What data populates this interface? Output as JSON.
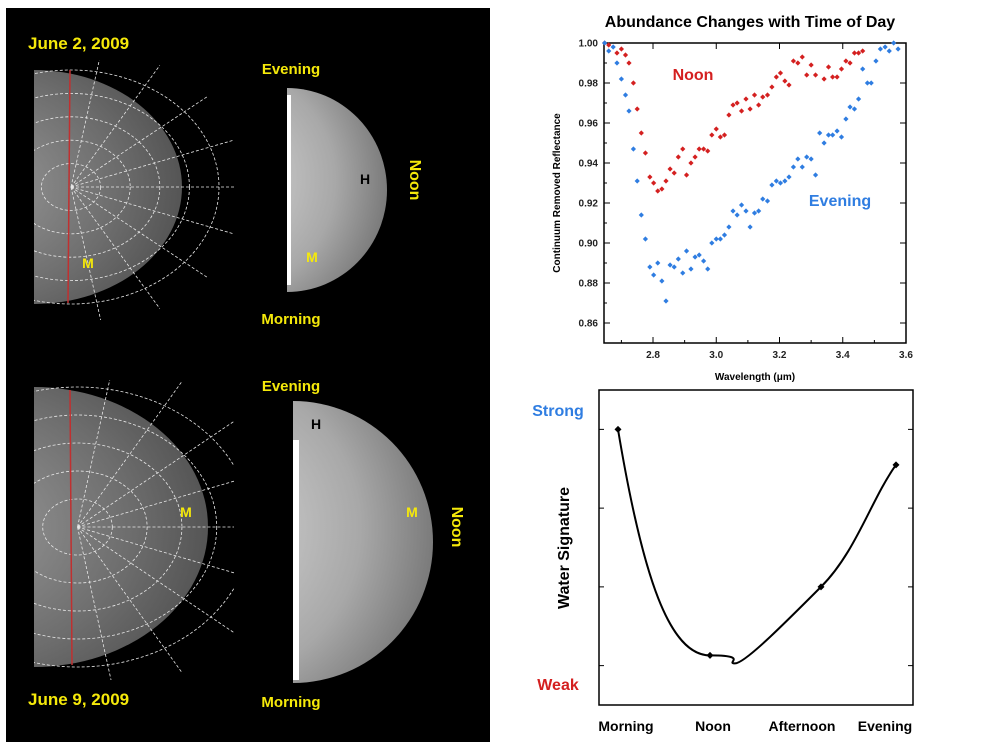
{
  "left_panel": {
    "top": {
      "date": "June 2, 2009",
      "evening_label": "Evening",
      "morning_label": "Morning",
      "noon_label": "Noon",
      "marker_h": "H",
      "marker_m_left": "M",
      "marker_m_right": "M"
    },
    "bottom": {
      "date": "June 9, 2009",
      "evening_label": "Evening",
      "morning_label": "Morning",
      "noon_label": "Noon",
      "marker_h": "H",
      "marker_m_left": "M",
      "marker_m_right": "M"
    },
    "colors": {
      "background": "#000000",
      "label": "#f5e90a"
    }
  },
  "chart_data": [
    {
      "type": "scatter",
      "title": "Abundance Changes with Time of Day",
      "xlabel": "Wavelength (μm)",
      "ylabel": "Continuum Removed Reflectance",
      "xlim": [
        2.645,
        3.6
      ],
      "ylim": [
        0.85,
        1.0
      ],
      "xticks": [
        "2.8",
        "3.0",
        "3.2",
        "3.4",
        "3.6"
      ],
      "yticks": [
        "0.86",
        "0.88",
        "0.90",
        "0.92",
        "0.94",
        "0.96",
        "0.98",
        "1.00"
      ],
      "grid": false,
      "series": [
        {
          "name": "Noon",
          "color": "#d42020",
          "x": [
            2.647,
            2.66,
            2.686,
            2.7,
            2.713,
            2.724,
            2.738,
            2.75,
            2.763,
            2.776,
            2.79,
            2.802,
            2.815,
            2.828,
            2.841,
            2.854,
            2.867,
            2.88,
            2.894,
            2.906,
            2.92,
            2.933,
            2.946,
            2.96,
            2.973,
            2.986,
            3.0,
            3.013,
            3.026,
            3.04,
            3.053,
            3.066,
            3.08,
            3.094,
            3.107,
            3.121,
            3.134,
            3.147,
            3.162,
            3.176,
            3.19,
            3.203,
            3.217,
            3.23,
            3.244,
            3.258,
            3.272,
            3.286,
            3.3,
            3.314,
            3.341,
            3.355,
            3.368,
            3.382,
            3.396,
            3.41,
            3.423,
            3.437,
            3.45,
            3.463
          ],
          "y": [
            1.0,
            0.999,
            0.995,
            0.997,
            0.994,
            0.99,
            0.98,
            0.967,
            0.955,
            0.945,
            0.933,
            0.93,
            0.926,
            0.927,
            0.931,
            0.937,
            0.935,
            0.943,
            0.947,
            0.934,
            0.94,
            0.943,
            0.947,
            0.947,
            0.946,
            0.954,
            0.957,
            0.953,
            0.954,
            0.964,
            0.969,
            0.97,
            0.966,
            0.972,
            0.967,
            0.974,
            0.969,
            0.973,
            0.974,
            0.978,
            0.983,
            0.985,
            0.981,
            0.979,
            0.991,
            0.99,
            0.993,
            0.984,
            0.989,
            0.984,
            0.982,
            0.988,
            0.983,
            0.983,
            0.987,
            0.991,
            0.99,
            0.995,
            0.995,
            0.996
          ]
        },
        {
          "name": "Evening",
          "color": "#2f7de1",
          "x": [
            2.647,
            2.66,
            2.674,
            2.686,
            2.7,
            2.713,
            2.724,
            2.738,
            2.75,
            2.763,
            2.776,
            2.79,
            2.802,
            2.815,
            2.828,
            2.841,
            2.854,
            2.867,
            2.88,
            2.894,
            2.906,
            2.92,
            2.933,
            2.946,
            2.96,
            2.973,
            2.986,
            3.0,
            3.013,
            3.026,
            3.04,
            3.053,
            3.066,
            3.08,
            3.094,
            3.107,
            3.121,
            3.134,
            3.147,
            3.162,
            3.176,
            3.19,
            3.203,
            3.217,
            3.23,
            3.244,
            3.258,
            3.272,
            3.286,
            3.3,
            3.314,
            3.327,
            3.341,
            3.355,
            3.368,
            3.382,
            3.396,
            3.41,
            3.423,
            3.437,
            3.45,
            3.463,
            3.478,
            3.49,
            3.505,
            3.519,
            3.534,
            3.547,
            3.561,
            3.575
          ],
          "y": [
            1.0,
            0.996,
            0.998,
            0.99,
            0.982,
            0.974,
            0.966,
            0.947,
            0.931,
            0.914,
            0.902,
            0.888,
            0.884,
            0.89,
            0.881,
            0.871,
            0.889,
            0.888,
            0.892,
            0.885,
            0.896,
            0.887,
            0.893,
            0.894,
            0.891,
            0.887,
            0.9,
            0.902,
            0.902,
            0.904,
            0.908,
            0.916,
            0.914,
            0.919,
            0.916,
            0.908,
            0.915,
            0.916,
            0.922,
            0.921,
            0.929,
            0.931,
            0.93,
            0.931,
            0.933,
            0.938,
            0.942,
            0.938,
            0.943,
            0.942,
            0.934,
            0.955,
            0.95,
            0.954,
            0.954,
            0.956,
            0.953,
            0.962,
            0.968,
            0.967,
            0.972,
            0.987,
            0.98,
            0.98,
            0.991,
            0.997,
            0.998,
            0.996,
            1.0,
            0.997
          ]
        }
      ]
    },
    {
      "type": "line",
      "ylabel": "Water Signature",
      "ylabel_top": "Strong",
      "ylabel_bottom": "Weak",
      "ylabel_top_color": "#2f7de1",
      "ylabel_bottom_color": "#d42020",
      "categories": [
        "Morning",
        "Noon",
        "Afternoon",
        "Evening"
      ],
      "values": [
        4.0,
        1.13,
        2.0,
        3.55
      ],
      "ylim": [
        0.5,
        4.5
      ],
      "grid": false,
      "line_color": "#000000"
    }
  ]
}
